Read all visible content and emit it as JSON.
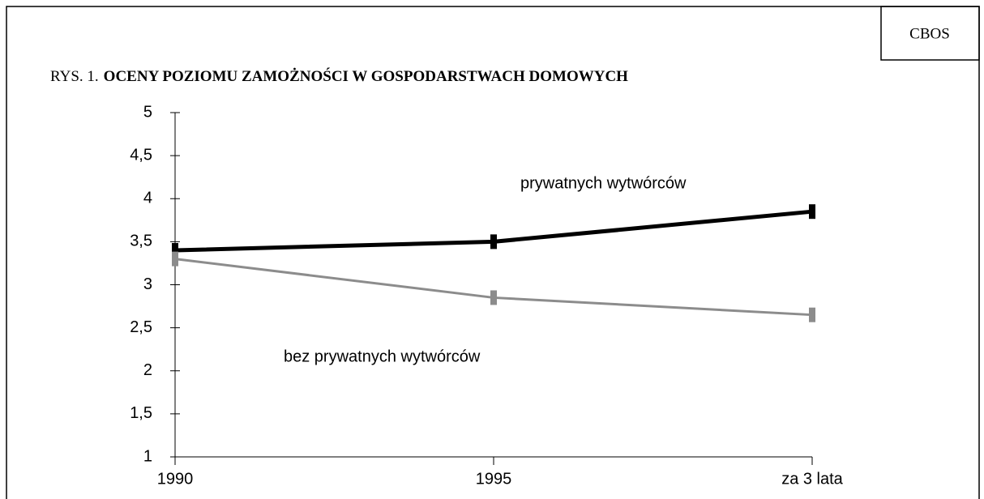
{
  "badge": "CBOS",
  "chart_data": {
    "type": "line",
    "figure_label": "RYS. 1.",
    "title": "OCENY POZIOMU ZAMOŻNOŚCI W GOSPODARSTWACH DOMOWYCH",
    "categories": [
      "1990",
      "1995",
      "za 3 lata"
    ],
    "series": [
      {
        "name": "prywatnych wytwórców",
        "color": "#000000",
        "values": [
          3.4,
          3.5,
          3.85
        ]
      },
      {
        "name": "bez prywatnych wytwórców",
        "color": "#8c8c8c",
        "values": [
          3.3,
          2.85,
          2.65
        ]
      }
    ],
    "ylim": [
      1,
      5
    ],
    "yticks": [
      1,
      {
        "value": 1.5,
        "label": "1,5"
      },
      2,
      {
        "value": 2.5,
        "label": "2,5"
      },
      3,
      {
        "value": 3.5,
        "label": "3,5"
      },
      4,
      {
        "value": 4.5,
        "label": "4,5"
      },
      5
    ]
  }
}
